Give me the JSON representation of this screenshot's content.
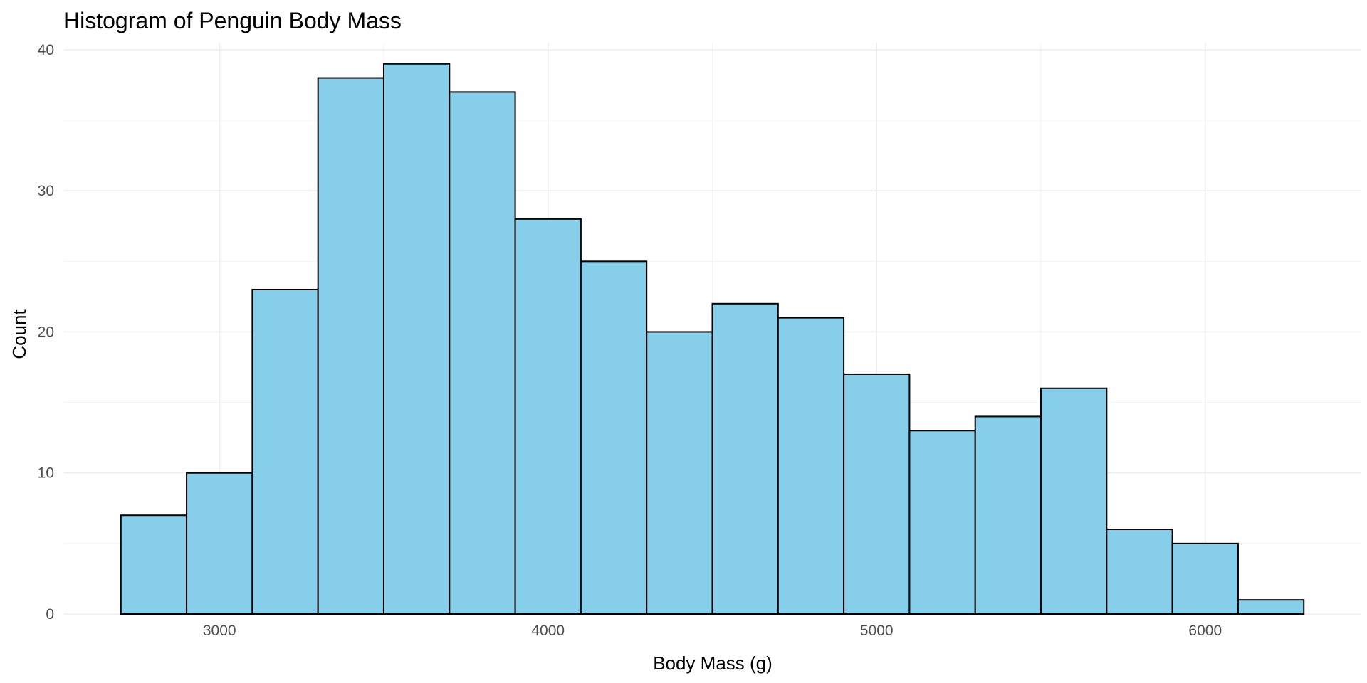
{
  "chart_data": {
    "type": "bar",
    "title": "Histogram of Penguin Body Mass",
    "xlabel": "Body Mass (g)",
    "ylabel": "Count",
    "bin_width": 200,
    "bins": [
      {
        "x0": 2700,
        "x1": 2900,
        "count": 7
      },
      {
        "x0": 2900,
        "x1": 3100,
        "count": 10
      },
      {
        "x0": 3100,
        "x1": 3300,
        "count": 23
      },
      {
        "x0": 3300,
        "x1": 3500,
        "count": 38
      },
      {
        "x0": 3500,
        "x1": 3700,
        "count": 39
      },
      {
        "x0": 3700,
        "x1": 3900,
        "count": 37
      },
      {
        "x0": 3900,
        "x1": 4100,
        "count": 28
      },
      {
        "x0": 4100,
        "x1": 4300,
        "count": 25
      },
      {
        "x0": 4300,
        "x1": 4500,
        "count": 20
      },
      {
        "x0": 4500,
        "x1": 4700,
        "count": 22
      },
      {
        "x0": 4700,
        "x1": 4900,
        "count": 21
      },
      {
        "x0": 4900,
        "x1": 5100,
        "count": 17
      },
      {
        "x0": 5100,
        "x1": 5300,
        "count": 13
      },
      {
        "x0": 5300,
        "x1": 5500,
        "count": 14
      },
      {
        "x0": 5500,
        "x1": 5700,
        "count": 16
      },
      {
        "x0": 5700,
        "x1": 5900,
        "count": 6
      },
      {
        "x0": 5900,
        "x1": 6100,
        "count": 5
      },
      {
        "x0": 6100,
        "x1": 6300,
        "count": 1
      }
    ],
    "xlim": [
      2525,
      6475
    ],
    "ylim": [
      0,
      40.5
    ],
    "x_ticks": [
      3000,
      4000,
      5000,
      6000
    ],
    "x_tick_labels": [
      "3000",
      "4000",
      "5000",
      "6000"
    ],
    "y_ticks": [
      0,
      10,
      20,
      30,
      40
    ],
    "y_tick_labels": [
      "0",
      "10",
      "20",
      "30",
      "40"
    ],
    "grid": true,
    "legend": "none",
    "bar_fill": "#87ceeb",
    "bar_outline": "#000000",
    "grid_color": "#ebebeb",
    "background": "#ffffff"
  }
}
